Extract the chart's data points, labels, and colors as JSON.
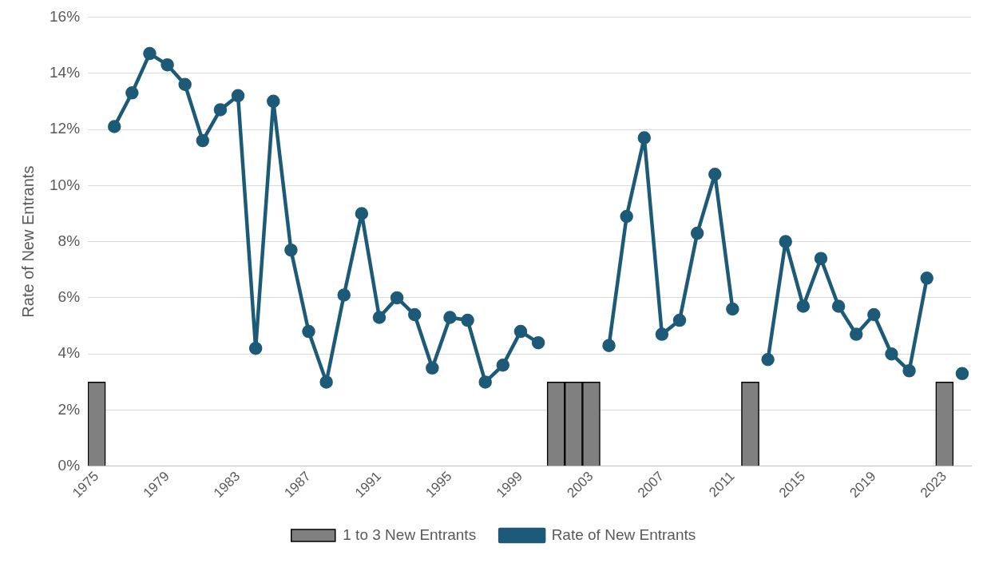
{
  "chart_data": {
    "type": "bar",
    "ylabel": "Rate of New Entrants",
    "categories": [
      "1975",
      null,
      null,
      null,
      "1979",
      null,
      null,
      null,
      "1983",
      null,
      null,
      null,
      "1987",
      null,
      null,
      null,
      "1991",
      null,
      null,
      null,
      "1995",
      null,
      null,
      null,
      "1999",
      null,
      null,
      null,
      "2003",
      null,
      null,
      null,
      "2007",
      null,
      null,
      null,
      "2011",
      null,
      null,
      null,
      "2015",
      null,
      null,
      null,
      "2019",
      null,
      null,
      null,
      "2023",
      null
    ],
    "series": [
      {
        "name": "1 to 3 New Entrants",
        "type": "bar",
        "color": "#808080",
        "values": [
          3,
          null,
          null,
          null,
          null,
          null,
          null,
          null,
          null,
          null,
          null,
          null,
          null,
          null,
          null,
          null,
          null,
          null,
          null,
          null,
          null,
          null,
          null,
          null,
          null,
          null,
          3,
          3,
          3,
          null,
          null,
          null,
          null,
          null,
          null,
          null,
          null,
          3,
          null,
          null,
          null,
          null,
          null,
          null,
          null,
          null,
          null,
          null,
          3,
          null
        ]
      },
      {
        "name": "Rate of New Entrants",
        "type": "line",
        "color": "#1d5a78",
        "marker": "circle",
        "values": [
          null,
          12.1,
          13.3,
          14.7,
          14.3,
          13.6,
          11.6,
          12.7,
          13.2,
          4.2,
          13.0,
          7.7,
          4.8,
          3.0,
          6.1,
          9.0,
          5.3,
          6.0,
          5.4,
          3.5,
          5.3,
          5.2,
          3.0,
          3.6,
          4.8,
          4.4,
          null,
          null,
          null,
          4.3,
          8.9,
          11.7,
          4.7,
          5.2,
          8.3,
          10.4,
          5.6,
          null,
          3.8,
          8.0,
          5.7,
          7.4,
          5.7,
          4.7,
          5.4,
          4.0,
          3.4,
          6.7,
          null,
          3.3
        ]
      }
    ],
    "ylim": [
      0,
      16
    ],
    "yticks": [
      {
        "value": 0,
        "label": "0%"
      },
      {
        "value": 2,
        "label": "2%"
      },
      {
        "value": 4,
        "label": "4%"
      },
      {
        "value": 6,
        "label": "6%"
      },
      {
        "value": 8,
        "label": "8%"
      },
      {
        "value": 10,
        "label": "10%"
      },
      {
        "value": 12,
        "label": "12%"
      },
      {
        "value": 14,
        "label": "14%"
      },
      {
        "value": 16,
        "label": "16%"
      }
    ],
    "grid": "y",
    "legend": "bottom"
  }
}
